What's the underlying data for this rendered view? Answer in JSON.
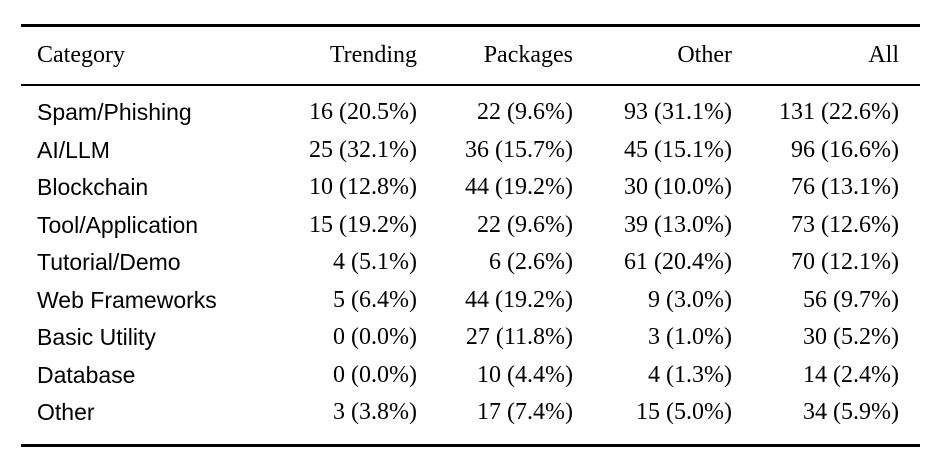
{
  "table": {
    "columns": [
      "Category",
      "Trending",
      "Packages",
      "Other",
      "All"
    ],
    "rows": [
      [
        "Spam/Phishing",
        "16 (20.5%)",
        "22 (9.6%)",
        "93 (31.1%)",
        "131 (22.6%)"
      ],
      [
        "AI/LLM",
        "25 (32.1%)",
        "36 (15.7%)",
        "45 (15.1%)",
        "96 (16.6%)"
      ],
      [
        "Blockchain",
        "10 (12.8%)",
        "44 (19.2%)",
        "30 (10.0%)",
        "76 (13.1%)"
      ],
      [
        "Tool/Application",
        "15 (19.2%)",
        "22 (9.6%)",
        "39 (13.0%)",
        "73 (12.6%)"
      ],
      [
        "Tutorial/Demo",
        "4 (5.1%)",
        "6 (2.6%)",
        "61 (20.4%)",
        "70 (12.1%)"
      ],
      [
        "Web Frameworks",
        "5 (6.4%)",
        "44 (19.2%)",
        "9 (3.0%)",
        "56 (9.7%)"
      ],
      [
        "Basic Utility",
        "0 (0.0%)",
        "27 (11.8%)",
        "3 (1.0%)",
        "30 (5.2%)"
      ],
      [
        "Database",
        "0 (0.0%)",
        "10 (4.4%)",
        "4 (1.3%)",
        "14 (2.4%)"
      ],
      [
        "Other",
        "3 (3.8%)",
        "17 (7.4%)",
        "15 (5.0%)",
        "34 (5.9%)"
      ]
    ]
  },
  "colors": {
    "text": "#000000",
    "rule": "#000000",
    "background": "#ffffff"
  }
}
